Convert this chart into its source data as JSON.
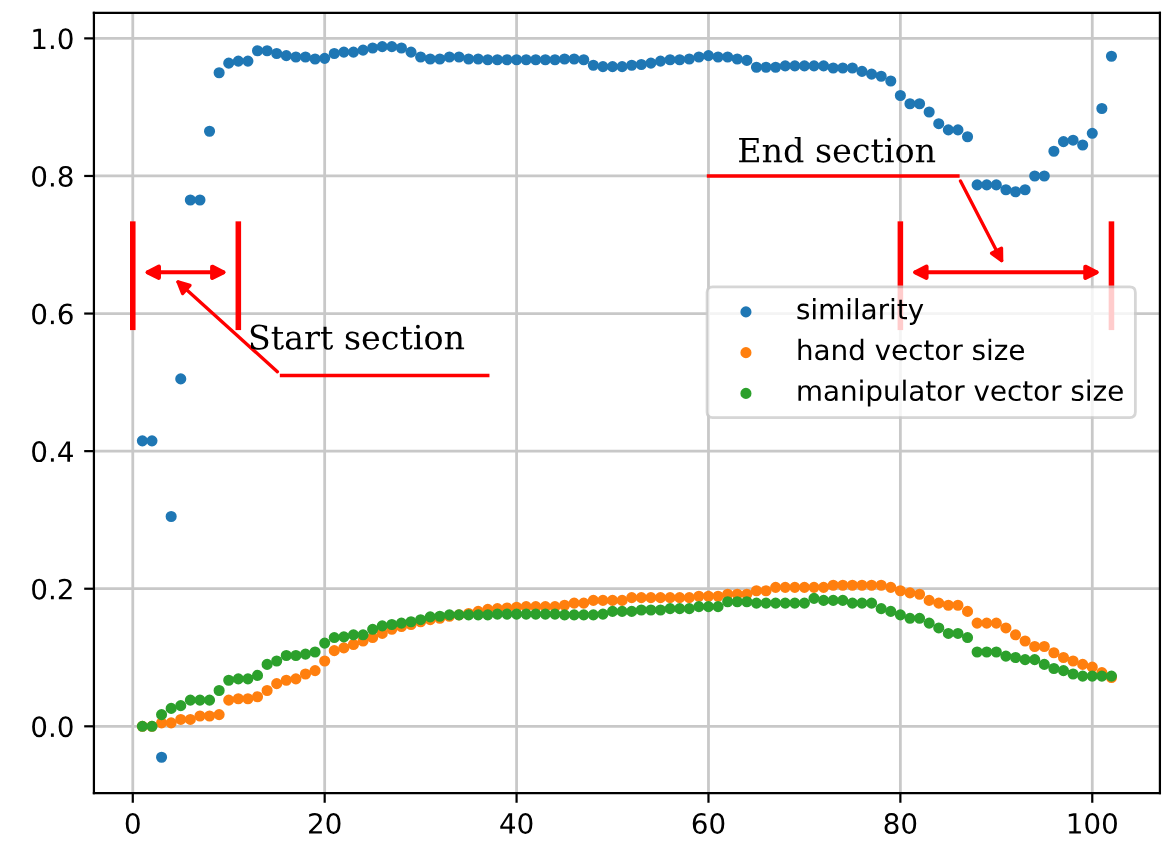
{
  "chart_data": {
    "type": "scatter",
    "x": [
      1,
      2,
      3,
      4,
      5,
      6,
      7,
      8,
      9,
      10,
      11,
      12,
      13,
      14,
      15,
      16,
      17,
      18,
      19,
      20,
      21,
      22,
      23,
      24,
      25,
      26,
      27,
      28,
      29,
      30,
      31,
      32,
      33,
      34,
      35,
      36,
      37,
      38,
      39,
      40,
      41,
      42,
      43,
      44,
      45,
      46,
      47,
      48,
      49,
      50,
      51,
      52,
      53,
      54,
      55,
      56,
      57,
      58,
      59,
      60,
      61,
      62,
      63,
      64,
      65,
      66,
      67,
      68,
      69,
      70,
      71,
      72,
      73,
      74,
      75,
      76,
      77,
      78,
      79,
      80,
      81,
      82,
      83,
      84,
      85,
      86,
      87,
      88,
      89,
      90,
      91,
      92,
      93,
      94,
      95,
      96,
      97,
      98,
      99,
      100,
      101,
      102
    ],
    "series": [
      {
        "name": "similarity",
        "color": "#1f77b4",
        "values": [
          0.415,
          0.415,
          -0.045,
          0.305,
          0.505,
          0.765,
          0.765,
          0.865,
          0.95,
          0.964,
          0.967,
          0.967,
          0.982,
          0.982,
          0.978,
          0.975,
          0.973,
          0.973,
          0.97,
          0.971,
          0.978,
          0.98,
          0.98,
          0.983,
          0.986,
          0.988,
          0.988,
          0.986,
          0.98,
          0.973,
          0.97,
          0.97,
          0.973,
          0.973,
          0.97,
          0.97,
          0.969,
          0.969,
          0.969,
          0.969,
          0.969,
          0.969,
          0.969,
          0.969,
          0.97,
          0.97,
          0.969,
          0.961,
          0.959,
          0.959,
          0.959,
          0.961,
          0.962,
          0.964,
          0.967,
          0.969,
          0.969,
          0.97,
          0.973,
          0.975,
          0.973,
          0.973,
          0.97,
          0.968,
          0.958,
          0.958,
          0.958,
          0.96,
          0.96,
          0.96,
          0.96,
          0.96,
          0.957,
          0.957,
          0.957,
          0.952,
          0.948,
          0.945,
          0.938,
          0.917,
          0.905,
          0.905,
          0.893,
          0.876,
          0.867,
          0.867,
          0.857,
          0.787,
          0.787,
          0.787,
          0.78,
          0.777,
          0.78,
          0.8,
          0.8,
          0.836,
          0.85,
          0.852,
          0.845,
          0.862,
          0.898,
          0.974
        ]
      },
      {
        "name": "hand vector size",
        "color": "#ff7f0e",
        "values": [
          0,
          0,
          0.005,
          0.005,
          0.01,
          0.01,
          0.015,
          0.015,
          0.017,
          0.038,
          0.04,
          0.04,
          0.043,
          0.052,
          0.062,
          0.067,
          0.069,
          0.076,
          0.081,
          0.095,
          0.11,
          0.114,
          0.119,
          0.124,
          0.129,
          0.135,
          0.141,
          0.145,
          0.148,
          0.152,
          0.155,
          0.157,
          0.16,
          0.162,
          0.164,
          0.167,
          0.17,
          0.171,
          0.172,
          0.173,
          0.174,
          0.174,
          0.174,
          0.174,
          0.176,
          0.179,
          0.179,
          0.183,
          0.183,
          0.183,
          0.183,
          0.187,
          0.187,
          0.187,
          0.187,
          0.187,
          0.187,
          0.187,
          0.189,
          0.189,
          0.189,
          0.192,
          0.192,
          0.192,
          0.197,
          0.197,
          0.202,
          0.202,
          0.202,
          0.202,
          0.202,
          0.202,
          0.205,
          0.205,
          0.205,
          0.205,
          0.205,
          0.205,
          0.202,
          0.197,
          0.194,
          0.192,
          0.183,
          0.179,
          0.176,
          0.176,
          0.167,
          0.15,
          0.15,
          0.15,
          0.143,
          0.133,
          0.124,
          0.116,
          0.116,
          0.107,
          0.1,
          0.095,
          0.09,
          0.086,
          0.078,
          0.071
        ]
      },
      {
        "name": "manipulator vector size",
        "color": "#2ca02c",
        "values": [
          0,
          0,
          0.017,
          0.026,
          0.03,
          0.038,
          0.038,
          0.038,
          0.052,
          0.067,
          0.069,
          0.069,
          0.074,
          0.09,
          0.095,
          0.103,
          0.103,
          0.105,
          0.108,
          0.121,
          0.129,
          0.13,
          0.133,
          0.133,
          0.141,
          0.146,
          0.148,
          0.15,
          0.152,
          0.155,
          0.159,
          0.16,
          0.162,
          0.162,
          0.162,
          0.162,
          0.162,
          0.163,
          0.163,
          0.163,
          0.163,
          0.163,
          0.163,
          0.163,
          0.162,
          0.162,
          0.162,
          0.162,
          0.163,
          0.167,
          0.167,
          0.167,
          0.169,
          0.169,
          0.169,
          0.171,
          0.171,
          0.171,
          0.174,
          0.174,
          0.174,
          0.181,
          0.181,
          0.181,
          0.179,
          0.179,
          0.179,
          0.179,
          0.179,
          0.179,
          0.186,
          0.183,
          0.183,
          0.183,
          0.179,
          0.179,
          0.179,
          0.171,
          0.167,
          0.162,
          0.157,
          0.157,
          0.15,
          0.143,
          0.135,
          0.135,
          0.129,
          0.108,
          0.108,
          0.108,
          0.102,
          0.1,
          0.097,
          0.097,
          0.09,
          0.084,
          0.081,
          0.076,
          0.073,
          0.073,
          0.073,
          0.073
        ]
      }
    ],
    "xlim": [
      -4.05,
      107.05
    ],
    "ylim": [
      -0.097,
      1.037
    ],
    "xticks": [
      0,
      20,
      40,
      60,
      80,
      100
    ],
    "yticks": [
      {
        "value": 0,
        "label": "0.0"
      },
      {
        "value": 0.2,
        "label": "0.2"
      },
      {
        "value": 0.4,
        "label": "0.4"
      },
      {
        "value": 0.6,
        "label": "0.6"
      },
      {
        "value": 0.8,
        "label": "0.8"
      },
      {
        "value": 1.0,
        "label": "1.0"
      }
    ],
    "grid": true,
    "legend": "center right",
    "marker": "circle",
    "annotations": [
      "Start section",
      "End section"
    ]
  }
}
